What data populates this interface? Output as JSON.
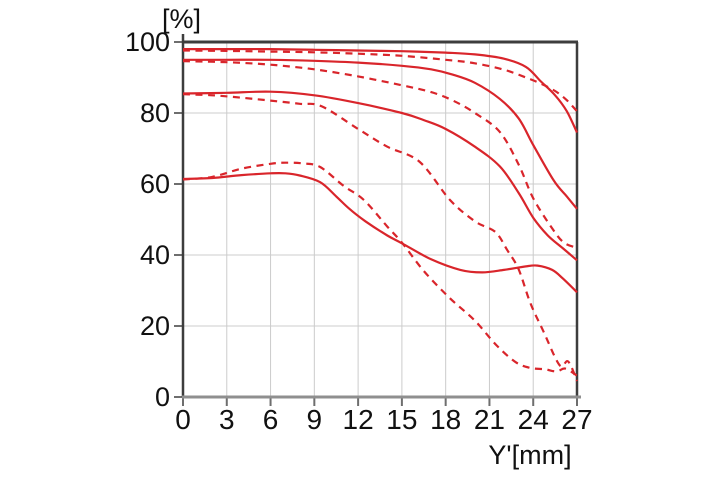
{
  "chart_data": {
    "type": "line",
    "title": "",
    "ylabel": "[%]",
    "xlabel": "Y'[mm]",
    "xlim": [
      0,
      27
    ],
    "ylim": [
      0,
      100
    ],
    "x_ticks": [
      0,
      3,
      6,
      9,
      12,
      15,
      18,
      21,
      24,
      27
    ],
    "y_ticks": [
      0,
      20,
      40,
      60,
      80,
      100
    ],
    "grid": true,
    "legend": "none",
    "line_color": "#d9252b",
    "series": [
      {
        "name": "curve-1-solid",
        "line_style": "solid",
        "points": [
          [
            0,
            98
          ],
          [
            3,
            98
          ],
          [
            6,
            98
          ],
          [
            9,
            97.8
          ],
          [
            12,
            97.6
          ],
          [
            15,
            97.4
          ],
          [
            18,
            97
          ],
          [
            20,
            96.5
          ],
          [
            22,
            95.3
          ],
          [
            23.5,
            93
          ],
          [
            24.5,
            89
          ],
          [
            25.5,
            85
          ],
          [
            26.3,
            80.5
          ],
          [
            27,
            74.5
          ]
        ]
      },
      {
        "name": "curve-1-dashed",
        "line_style": "dashed",
        "points": [
          [
            0,
            97.6
          ],
          [
            3,
            97.5
          ],
          [
            6,
            97.3
          ],
          [
            9,
            97.1
          ],
          [
            12,
            96.7
          ],
          [
            15,
            96.1
          ],
          [
            18,
            95
          ],
          [
            20,
            94
          ],
          [
            22,
            92.2
          ],
          [
            23.5,
            90
          ],
          [
            24.5,
            88.3
          ],
          [
            25.5,
            86.2
          ],
          [
            26.3,
            83.6
          ],
          [
            27,
            80.5
          ]
        ]
      },
      {
        "name": "curve-2-solid",
        "line_style": "solid",
        "points": [
          [
            0,
            95
          ],
          [
            3,
            95
          ],
          [
            6,
            95
          ],
          [
            9,
            94.7
          ],
          [
            12,
            94.2
          ],
          [
            15,
            93.3
          ],
          [
            17,
            92.3
          ],
          [
            18.5,
            90.8
          ],
          [
            20,
            88.5
          ],
          [
            21.7,
            84
          ],
          [
            23,
            78.5
          ],
          [
            24,
            71
          ],
          [
            25.4,
            61
          ],
          [
            26.3,
            56.5
          ],
          [
            27,
            53
          ]
        ]
      },
      {
        "name": "curve-2-dashed",
        "line_style": "dashed",
        "points": [
          [
            0,
            94.6
          ],
          [
            3,
            94.3
          ],
          [
            6,
            93.6
          ],
          [
            9,
            92.3
          ],
          [
            12,
            90.3
          ],
          [
            15,
            87.8
          ],
          [
            17,
            85.9
          ],
          [
            18.5,
            83.5
          ],
          [
            20,
            80
          ],
          [
            21.7,
            74.7
          ],
          [
            23,
            65.5
          ],
          [
            24,
            56
          ],
          [
            25.3,
            47.5
          ],
          [
            26.1,
            43.5
          ],
          [
            27,
            42
          ]
        ]
      },
      {
        "name": "curve-3-solid",
        "line_style": "solid",
        "points": [
          [
            0,
            85.5
          ],
          [
            3,
            85.7
          ],
          [
            6,
            86
          ],
          [
            9,
            85
          ],
          [
            12,
            82.8
          ],
          [
            15,
            80
          ],
          [
            16.5,
            78
          ],
          [
            18,
            75.5
          ],
          [
            20,
            70.5
          ],
          [
            21.7,
            65
          ],
          [
            23,
            57.5
          ],
          [
            24,
            50.5
          ],
          [
            25,
            45.5
          ],
          [
            26,
            42
          ],
          [
            27,
            38.5
          ]
        ]
      },
      {
        "name": "curve-3-dashed",
        "line_style": "dashed",
        "points": [
          [
            0,
            85.3
          ],
          [
            2,
            85
          ],
          [
            4,
            84.3
          ],
          [
            6,
            83.5
          ],
          [
            8,
            82.6
          ],
          [
            9.5,
            81.9
          ],
          [
            12,
            75.5
          ],
          [
            14,
            70.5
          ],
          [
            16.2,
            66.3
          ],
          [
            18.3,
            55.5
          ],
          [
            20,
            49.5
          ],
          [
            21.4,
            46.5
          ],
          [
            22.2,
            41.5
          ],
          [
            23,
            36
          ],
          [
            23.8,
            26.5
          ],
          [
            24.7,
            18.5
          ],
          [
            25.8,
            9
          ],
          [
            26.4,
            10
          ],
          [
            27,
            4.5
          ]
        ]
      },
      {
        "name": "curve-4-solid",
        "line_style": "solid",
        "points": [
          [
            0,
            61.4
          ],
          [
            2,
            61.7
          ],
          [
            4,
            62.5
          ],
          [
            6,
            63
          ],
          [
            7,
            63
          ],
          [
            8,
            62.4
          ],
          [
            9.4,
            60.5
          ],
          [
            10.5,
            56.5
          ],
          [
            11.4,
            53
          ],
          [
            12.5,
            49.5
          ],
          [
            14,
            45.5
          ],
          [
            15,
            43.3
          ],
          [
            17,
            38.8
          ],
          [
            19,
            35.8
          ],
          [
            20.5,
            35.1
          ],
          [
            22,
            35.8
          ],
          [
            23.5,
            36.8
          ],
          [
            24.3,
            37
          ],
          [
            25.3,
            35.8
          ],
          [
            26,
            33.5
          ],
          [
            27,
            29.5
          ]
        ]
      },
      {
        "name": "curve-4-dashed",
        "line_style": "dashed",
        "points": [
          [
            0,
            61.3
          ],
          [
            2,
            62
          ],
          [
            4,
            64.3
          ],
          [
            6,
            65.7
          ],
          [
            7,
            66
          ],
          [
            8.2,
            65.8
          ],
          [
            9.4,
            64.8
          ],
          [
            11,
            59.5
          ],
          [
            12.4,
            55.5
          ],
          [
            14,
            48
          ],
          [
            15,
            43.5
          ],
          [
            16.5,
            35.5
          ],
          [
            18.3,
            27.8
          ],
          [
            20,
            21.5
          ],
          [
            21.5,
            14.5
          ],
          [
            22.8,
            9.8
          ],
          [
            23.8,
            8.2
          ],
          [
            24.8,
            7.8
          ],
          [
            25.6,
            7.2
          ],
          [
            26.2,
            8
          ],
          [
            27,
            6
          ]
        ]
      }
    ]
  },
  "colors": {
    "curve_red": "#d9252b",
    "frame_dark": "#3d3d3d",
    "axis_gray": "#8f8f8f",
    "grid_gray": "#cccccc",
    "tick_gray": "#6e6e6e",
    "text": "#111111",
    "background": "#ffffff"
  }
}
